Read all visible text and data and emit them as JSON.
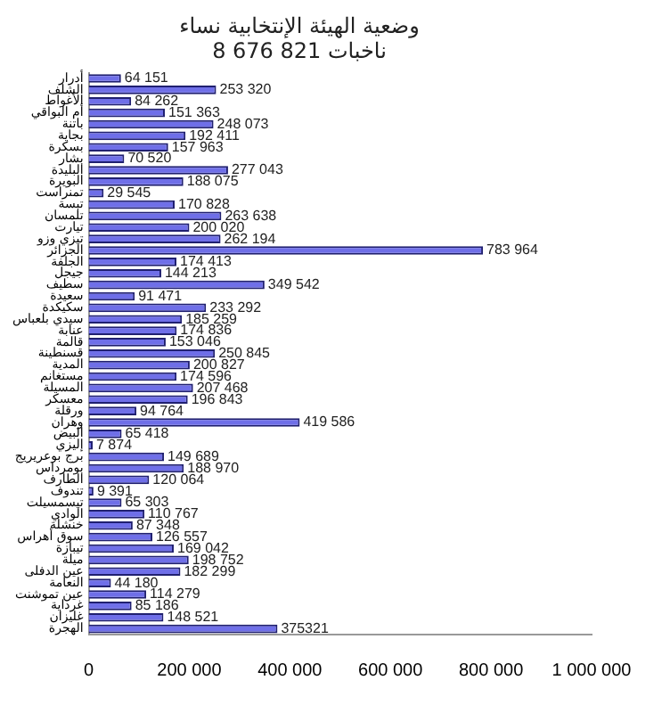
{
  "chart_data": {
    "type": "bar",
    "orientation": "horizontal",
    "title": "وضعية الهيئة الإنتخابية نساء",
    "subtitle": "8 676 821 ناخبات",
    "categories": [
      "أدرار",
      "الشلف",
      "الأغواط",
      "أم البواقي",
      "باتنة",
      "بجاية",
      "بسكرة",
      "بشار",
      "البليدة",
      "البويرة",
      "تمنراست",
      "تبسة",
      "تلمسان",
      "تيارت",
      "تيزي وزو",
      "الجزائر",
      "الجلفة",
      "جيجل",
      "سطيف",
      "سعيدة",
      "سكيكدة",
      "سيدي بلعباس",
      "عنابة",
      "قالمة",
      "قسنطينة",
      "المدية",
      "مستغانم",
      "المسيلة",
      "معسكر",
      "ورقلة",
      "وهران",
      "البيض",
      "إليزي",
      "برج بوعريريج",
      "بومرداس",
      "الطارف",
      "تندوف",
      "تيسمسيلت",
      "الوادي",
      "خنشلة",
      "سوق أهراس",
      "تيبازة",
      "ميلة",
      "عين الدفلى",
      "النعامة",
      "عين تموشنت",
      "غرداية",
      "غليزان",
      "الهجرة"
    ],
    "values": [
      64151,
      253320,
      84262,
      151363,
      248073,
      192411,
      157963,
      70520,
      277043,
      188075,
      29545,
      170828,
      263638,
      200020,
      262194,
      783964,
      174413,
      144213,
      349542,
      91471,
      233292,
      185259,
      174836,
      153046,
      250845,
      200827,
      174596,
      207468,
      196843,
      94764,
      419586,
      65418,
      7874,
      149689,
      188970,
      120064,
      9391,
      65303,
      110767,
      87348,
      126557,
      169042,
      198752,
      182299,
      44180,
      114279,
      85186,
      148521,
      375321
    ],
    "value_labels": [
      "64 151",
      "253 320",
      "84 262",
      "151 363",
      "248 073",
      "192 411",
      "157 963",
      "70 520",
      "277 043",
      "188 075",
      "29 545",
      "170 828",
      "263 638",
      "200 020",
      "262 194",
      "783 964",
      "174 413",
      "144 213",
      "349 542",
      "91 471",
      "233 292",
      "185 259",
      "174 836",
      "153 046",
      "250 845",
      "200 827",
      "174 596",
      "207 468",
      "196 843",
      "94 764",
      "419 586",
      "65 418",
      "7 874",
      "149 689",
      "188 970",
      "120 064",
      "9 391",
      "65 303",
      "110 767",
      "87 348",
      "126 557",
      "169 042",
      "198 752",
      "182 299",
      "44 180",
      "114 279",
      "85 186",
      "148 521",
      "375321"
    ],
    "color": "#6f6fe8",
    "xlim": [
      0,
      1000000
    ],
    "xticks": [
      0,
      {
        "value": 200000,
        "label": "200 000"
      },
      {
        "value": 400000,
        "label": "400 000"
      },
      {
        "value": 600000,
        "label": "600 000"
      },
      {
        "value": 800000,
        "label": "800 000"
      },
      {
        "value": 1000000,
        "label": "1 000 000"
      }
    ],
    "grid": false,
    "legend": false
  }
}
